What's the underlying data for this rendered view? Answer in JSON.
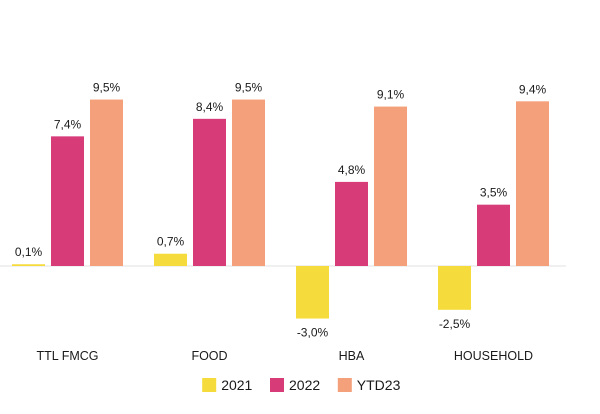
{
  "chart_data": {
    "type": "bar",
    "title": "",
    "xlabel": "",
    "ylabel": "",
    "categories": [
      "TTL FMCG",
      "FOOD",
      "HBA",
      "HOUSEHOLD"
    ],
    "series": [
      {
        "name": "2021",
        "color": "#f5dc3c",
        "values": [
          0.1,
          0.7,
          -3.0,
          -2.5
        ],
        "labels": [
          "0,1%",
          "0,7%",
          "-3,0%",
          "-2,5%"
        ]
      },
      {
        "name": "2022",
        "color": "#d73c78",
        "values": [
          7.4,
          8.4,
          4.8,
          3.5
        ],
        "labels": [
          "7,4%",
          "8,4%",
          "4,8%",
          "3,5%"
        ]
      },
      {
        "name": "YTD23",
        "color": "#f4a07a",
        "values": [
          9.5,
          9.5,
          9.1,
          9.4
        ],
        "labels": [
          "9,5%",
          "9,5%",
          "9,1%",
          "9,4%"
        ]
      }
    ],
    "ylim": [
      -5,
      11
    ],
    "grid": false,
    "legend": "bottom-center",
    "zero_line_color": "#e0e0e0"
  }
}
